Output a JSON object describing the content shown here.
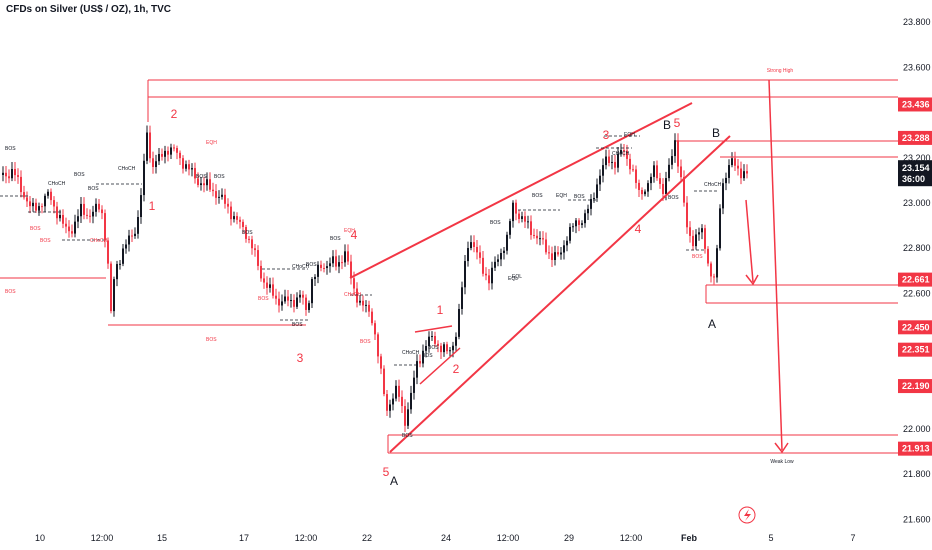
{
  "header": {
    "title": "CFDs on Silver (US$ / OZ), 1h, TVC"
  },
  "colors": {
    "bull": "#131722",
    "bear": "#f23645",
    "line": "#f23645",
    "grid_text": "#131722"
  },
  "y_axis": {
    "ticks": [
      "23.800",
      "23.600",
      "23.200",
      "23.000",
      "22.800",
      "22.600",
      "22.000",
      "21.800",
      "21.600"
    ],
    "badges": [
      "23.436",
      "23.288",
      "22.661",
      "22.450",
      "22.351",
      "22.190",
      "21.913"
    ],
    "current_price": "23.154",
    "countdown": "36:00"
  },
  "x_axis": {
    "ticks": [
      "10",
      "12:00",
      "15",
      "17",
      "12:00",
      "22",
      "24",
      "12:00",
      "29",
      "12:00",
      "Feb",
      "5",
      "7"
    ]
  },
  "annotations": {
    "strong_high": "Strong High",
    "weak_low": "Weak Low",
    "wave_labels": [
      "1",
      "2",
      "3",
      "4",
      "5",
      "1",
      "2",
      "3",
      "4",
      "5"
    ],
    "abc_labels": [
      "A",
      "B",
      "A",
      "B"
    ]
  },
  "structure_labels": [
    "BOS",
    "CHoCH",
    "EQH",
    "EQL"
  ],
  "icons": {
    "alert": "lightning-alert-icon"
  }
}
